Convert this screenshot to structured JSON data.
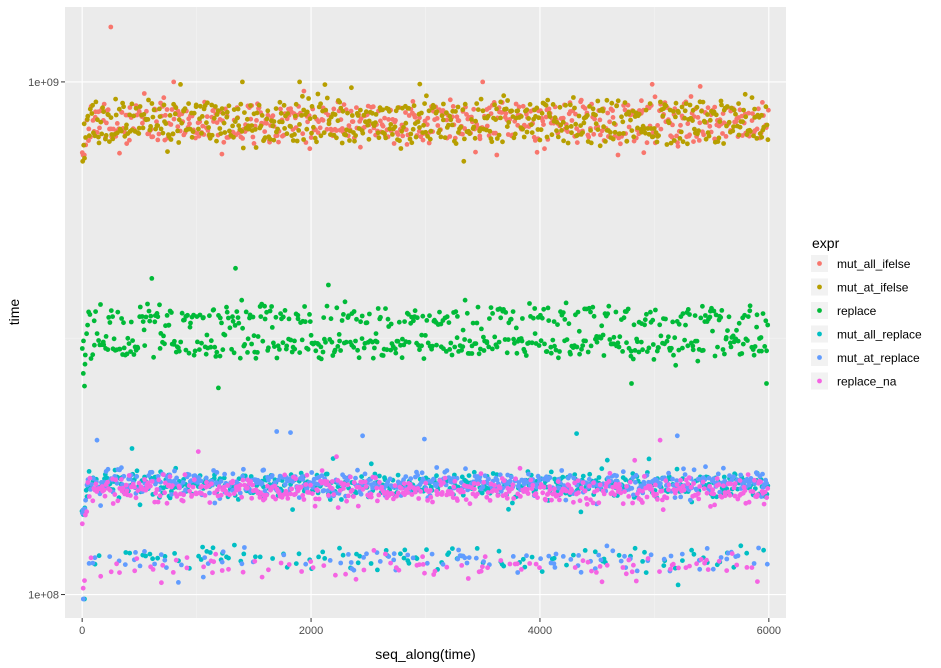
{
  "chart_data": {
    "type": "scatter",
    "xlabel": "seq_along(time)",
    "ylabel": "time",
    "xlim": [
      -150,
      6150
    ],
    "ylim": [
      90000000,
      1400000000
    ],
    "y_scale": "log10",
    "x_ticks": [
      0,
      2000,
      4000,
      6000
    ],
    "x_tick_labels": [
      "0",
      "2000",
      "4000",
      "6000"
    ],
    "y_ticks": [
      100000000,
      1000000000
    ],
    "y_tick_labels": [
      "1e+08",
      "1e+09"
    ],
    "grid": true,
    "legend": {
      "title": "expr",
      "position": "right"
    },
    "n_points_per_series": 6000,
    "series": [
      {
        "name": "mut_all_ifelse",
        "color": "#F8766D",
        "bands": [
          {
            "center": 870000000,
            "share": 0.5
          },
          {
            "center": 800000000,
            "share": 0.5
          }
        ],
        "range": [
          720000000,
          1000000000
        ],
        "outliers": [
          {
            "x": 250,
            "y": 1280000000
          },
          {
            "x": 800,
            "y": 1000000000
          },
          {
            "x": 3500,
            "y": 1000000000
          },
          {
            "x": 5400,
            "y": 980000000
          }
        ]
      },
      {
        "name": "mut_at_ifelse",
        "color": "#B79F00",
        "bands": [
          {
            "center": 880000000,
            "share": 0.5
          },
          {
            "center": 800000000,
            "share": 0.5
          }
        ],
        "range": [
          700000000,
          1000000000
        ],
        "outliers": [
          {
            "x": 20,
            "y": 710000000
          },
          {
            "x": 1400,
            "y": 1000000000
          },
          {
            "x": 1900,
            "y": 1000000000
          },
          {
            "x": 2950,
            "y": 990000000
          }
        ]
      },
      {
        "name": "replace",
        "color": "#00BA38",
        "bands": [
          {
            "center": 350000000,
            "share": 0.45
          },
          {
            "center": 305000000,
            "share": 0.55
          }
        ],
        "range": [
          280000000,
          420000000
        ],
        "outliers": [
          {
            "x": 10,
            "y": 270000000
          },
          {
            "x": 20,
            "y": 255000000
          },
          {
            "x": 1190,
            "y": 253000000
          },
          {
            "x": 1340,
            "y": 433000000
          },
          {
            "x": 4800,
            "y": 258000000
          },
          {
            "x": 5980,
            "y": 258000000
          }
        ]
      },
      {
        "name": "mut_all_replace",
        "color": "#00BFC4",
        "bands": [
          {
            "center": 164000000,
            "share": 0.8
          },
          {
            "center": 118000000,
            "share": 0.2
          }
        ],
        "range": [
          100000000,
          200000000
        ],
        "outliers": [
          {
            "x": 20,
            "y": 98000000
          },
          {
            "x": 4320,
            "y": 206000000
          }
        ]
      },
      {
        "name": "mut_at_replace",
        "color": "#619CFF",
        "bands": [
          {
            "center": 165000000,
            "share": 0.8
          },
          {
            "center": 117000000,
            "share": 0.2
          }
        ],
        "range": [
          100000000,
          200000000
        ],
        "outliers": [
          {
            "x": 10,
            "y": 98000000
          },
          {
            "x": 130,
            "y": 200000000
          },
          {
            "x": 1700,
            "y": 208000000
          },
          {
            "x": 1820,
            "y": 207000000
          },
          {
            "x": 2450,
            "y": 204000000
          },
          {
            "x": 2990,
            "y": 201000000
          },
          {
            "x": 5200,
            "y": 204000000
          }
        ]
      },
      {
        "name": "replace_na",
        "color": "#F564E3",
        "bands": [
          {
            "center": 160000000,
            "share": 0.8
          },
          {
            "center": 113000000,
            "share": 0.2
          }
        ],
        "range": [
          100000000,
          190000000
        ],
        "outliers": [
          {
            "x": 5050,
            "y": 200000000
          },
          {
            "x": 5900,
            "y": 106000000
          }
        ]
      }
    ]
  }
}
